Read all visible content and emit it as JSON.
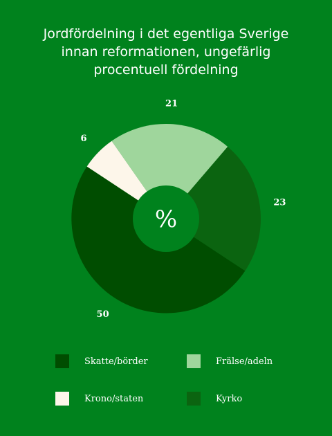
{
  "chart_data": {
    "type": "pie",
    "title_lines": [
      "Jordfördelning i det egentliga Sverige",
      "innan reformationen, ungefärlig",
      "procentuell fördelning"
    ],
    "center_label": "%",
    "slices": [
      {
        "label": "Frälse/adeln",
        "value": 21,
        "color": "#9fd69c"
      },
      {
        "label": "Kyrko",
        "value": 23,
        "color": "#0b6410"
      },
      {
        "label": "Skatte/börder",
        "value": 50,
        "color": "#004d00"
      },
      {
        "label": "Krono/staten",
        "value": 6,
        "color": "#fdf6ea"
      }
    ],
    "legend": [
      {
        "label": "Skatte/börder",
        "color": "#004d00"
      },
      {
        "label": "Frälse/adeln",
        "color": "#9fd69c"
      },
      {
        "label": "Krono/staten",
        "color": "#fdf6ea"
      },
      {
        "label": "Kyrko",
        "color": "#0b6410"
      }
    ],
    "center_color": "#00821d"
  }
}
